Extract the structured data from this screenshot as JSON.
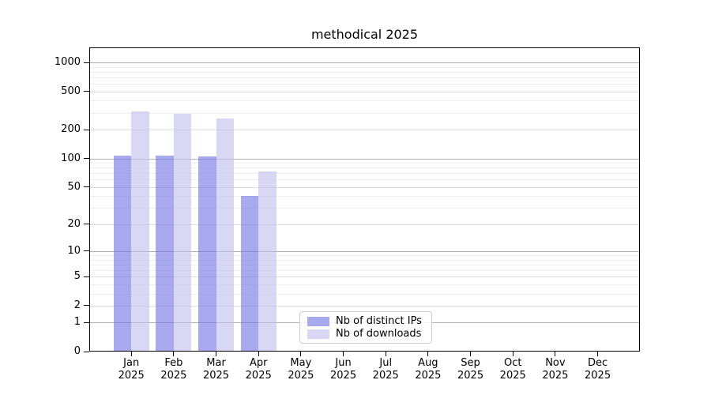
{
  "chart_data": {
    "type": "bar",
    "title": "methodical 2025",
    "categories": [
      "Jan",
      "Feb",
      "Mar",
      "Apr",
      "May",
      "Jun",
      "Jul",
      "Aug",
      "Sep",
      "Oct",
      "Nov",
      "Dec"
    ],
    "year": "2025",
    "series": [
      {
        "name": "Nb of distinct IPs",
        "color": "#a9a9f0",
        "bar_fill": "rgba(112,112,230,0.6)",
        "values": [
          107,
          107,
          104,
          40,
          0,
          0,
          0,
          0,
          0,
          0,
          0,
          0
        ]
      },
      {
        "name": "Nb of downloads",
        "color": "#d8d8f5",
        "bar_fill": "rgba(190,190,238,0.6)",
        "values": [
          309,
          292,
          261,
          73,
          0,
          0,
          0,
          0,
          0,
          0,
          0,
          0
        ]
      }
    ],
    "yscale": "log1p",
    "ylim": [
      0,
      1400
    ],
    "xlabel": "",
    "ylabel": "",
    "y_ticks": [
      1000,
      500,
      200,
      100,
      50,
      20,
      10,
      5,
      2,
      1,
      0
    ],
    "grid": {
      "major": [
        1,
        10,
        100,
        1000
      ],
      "labeled": [
        2,
        5,
        20,
        50,
        200,
        500
      ],
      "minor": [
        3,
        4,
        6,
        7,
        8,
        9,
        30,
        40,
        60,
        70,
        80,
        90,
        300,
        400,
        600,
        700,
        800,
        900
      ]
    },
    "legend_position": "lower center"
  }
}
